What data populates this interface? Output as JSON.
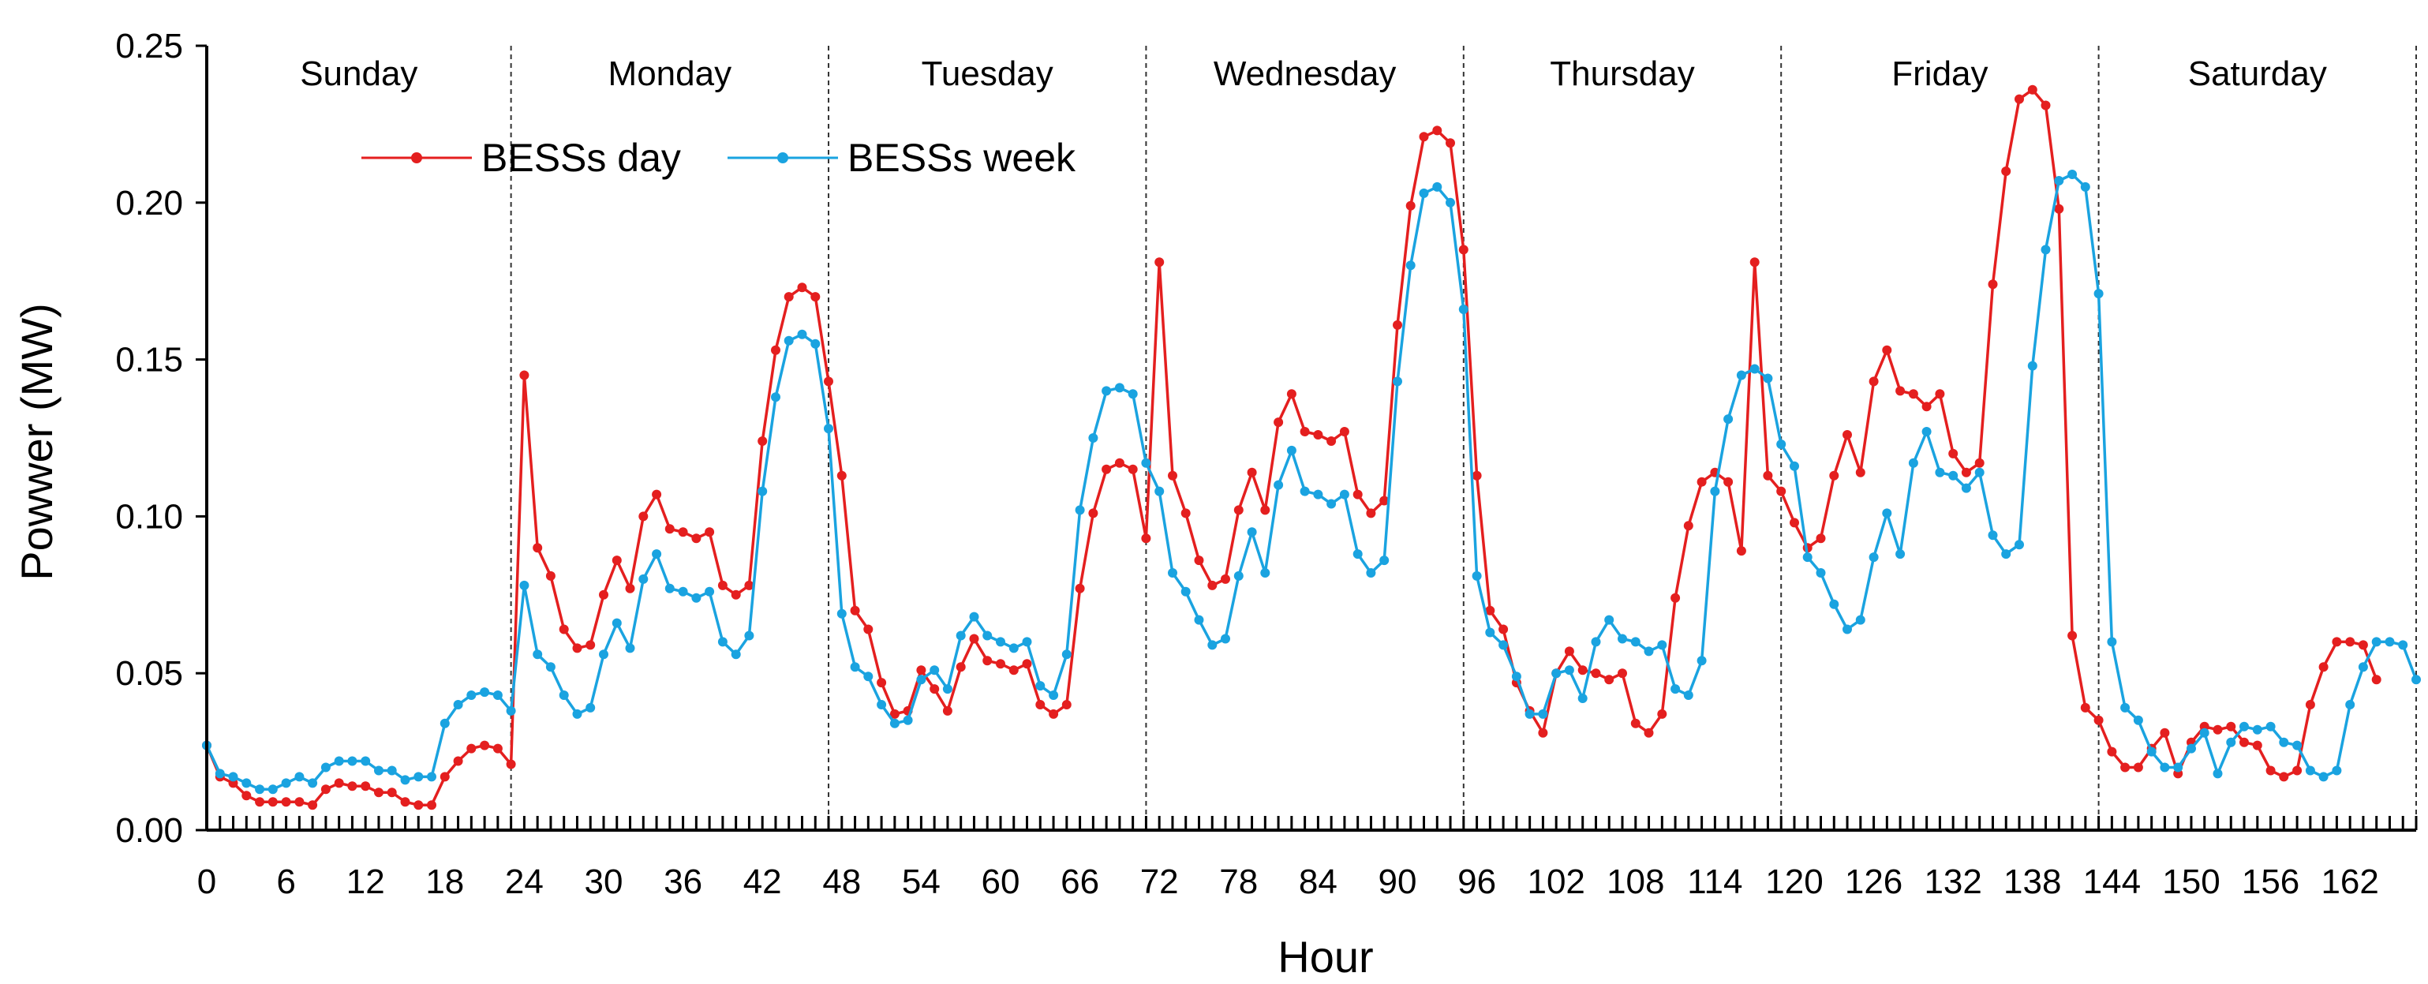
{
  "chart_data": {
    "type": "line",
    "title": "",
    "xlabel": "Hour",
    "ylabel": "Powwer (MW)",
    "xlim": [
      0,
      167
    ],
    "ylim": [
      0,
      0.25
    ],
    "x_ticks": [
      0,
      6,
      12,
      18,
      24,
      30,
      36,
      42,
      48,
      54,
      60,
      66,
      72,
      78,
      84,
      90,
      96,
      102,
      108,
      114,
      120,
      126,
      132,
      138,
      144,
      150,
      156,
      162
    ],
    "x_tick_labels": [
      "0",
      "6",
      "12",
      "18",
      "24",
      "30",
      "36",
      "42",
      "48",
      "54",
      "60",
      "66",
      "72",
      "78",
      "84",
      "90",
      "96",
      "102",
      "108",
      "114",
      "120",
      "126",
      "132",
      "138",
      "144",
      "150",
      "156",
      "162"
    ],
    "y_ticks": [
      0,
      0.05,
      0.1,
      0.15,
      0.2,
      0.25
    ],
    "y_tick_labels": [
      "0.00",
      "0.05",
      "0.10",
      "0.15",
      "0.20",
      "0.25"
    ],
    "day_dividers": [
      23,
      47,
      71,
      95,
      119,
      143
    ],
    "days": [
      {
        "label": "Sunday",
        "center": 11.5
      },
      {
        "label": "Monday",
        "center": 35
      },
      {
        "label": "Tuesday",
        "center": 59
      },
      {
        "label": "Wednesday",
        "center": 83
      },
      {
        "label": "Thursday",
        "center": 107
      },
      {
        "label": "Friday",
        "center": 131
      },
      {
        "label": "Saturday",
        "center": 155
      }
    ],
    "legend_position": "top-left",
    "series": [
      {
        "name": "BESSs day",
        "color": "#e41f1f",
        "values": [
          0.027,
          0.017,
          0.015,
          0.011,
          0.009,
          0.009,
          0.009,
          0.009,
          0.008,
          0.013,
          0.015,
          0.014,
          0.014,
          0.012,
          0.012,
          0.009,
          0.008,
          0.008,
          0.017,
          0.022,
          0.026,
          0.027,
          0.026,
          0.021,
          0.145,
          0.09,
          0.081,
          0.064,
          0.058,
          0.059,
          0.075,
          0.086,
          0.077,
          0.1,
          0.107,
          0.096,
          0.095,
          0.093,
          0.095,
          0.078,
          0.075,
          0.078,
          0.124,
          0.153,
          0.17,
          0.173,
          0.17,
          0.143,
          0.113,
          0.07,
          0.064,
          0.047,
          0.037,
          0.038,
          0.051,
          0.045,
          0.038,
          0.052,
          0.061,
          0.054,
          0.053,
          0.051,
          0.053,
          0.04,
          0.037,
          0.04,
          0.077,
          0.101,
          0.115,
          0.117,
          0.115,
          0.093,
          0.181,
          0.113,
          0.101,
          0.086,
          0.078,
          0.08,
          0.102,
          0.114,
          0.102,
          0.13,
          0.139,
          0.127,
          0.126,
          0.124,
          0.127,
          0.107,
          0.101,
          0.105,
          0.161,
          0.199,
          0.221,
          0.223,
          0.219,
          0.185,
          0.113,
          0.07,
          0.064,
          0.047,
          0.038,
          0.031,
          0.05,
          0.057,
          0.051,
          0.05,
          0.048,
          0.05,
          0.034,
          0.031,
          0.037,
          0.074,
          0.097,
          0.111,
          0.114,
          0.111,
          0.089,
          0.181,
          0.113,
          0.108,
          0.098,
          0.09,
          0.093,
          0.113,
          0.126,
          0.114,
          0.143,
          0.153,
          0.14,
          0.139,
          0.135,
          0.139,
          0.12,
          0.114,
          0.117,
          0.174,
          0.21,
          0.233,
          0.236,
          0.231,
          0.198,
          0.062,
          0.039,
          0.035,
          0.025,
          0.02,
          0.02,
          0.026,
          0.031,
          0.018,
          0.028,
          0.033,
          0.032,
          0.033,
          0.028,
          0.027,
          0.019,
          0.017,
          0.019,
          0.04,
          0.052,
          0.06,
          0.06,
          0.059,
          0.048
        ]
      },
      {
        "name": "BESSs week",
        "color": "#1aa3e0",
        "values": [
          0.027,
          0.018,
          0.017,
          0.015,
          0.013,
          0.013,
          0.015,
          0.017,
          0.015,
          0.02,
          0.022,
          0.022,
          0.022,
          0.019,
          0.019,
          0.016,
          0.017,
          0.017,
          0.034,
          0.04,
          0.043,
          0.044,
          0.043,
          0.038,
          0.078,
          0.056,
          0.052,
          0.043,
          0.037,
          0.039,
          0.056,
          0.066,
          0.058,
          0.08,
          0.088,
          0.077,
          0.076,
          0.074,
          0.076,
          0.06,
          0.056,
          0.062,
          0.108,
          0.138,
          0.156,
          0.158,
          0.155,
          0.128,
          0.069,
          0.052,
          0.049,
          0.04,
          0.034,
          0.035,
          0.048,
          0.051,
          0.045,
          0.062,
          0.068,
          0.062,
          0.06,
          0.058,
          0.06,
          0.046,
          0.043,
          0.056,
          0.102,
          0.125,
          0.14,
          0.141,
          0.139,
          0.117,
          0.108,
          0.082,
          0.076,
          0.067,
          0.059,
          0.061,
          0.081,
          0.095,
          0.082,
          0.11,
          0.121,
          0.108,
          0.107,
          0.104,
          0.107,
          0.088,
          0.082,
          0.086,
          0.143,
          0.18,
          0.203,
          0.205,
          0.2,
          0.166,
          0.081,
          0.063,
          0.059,
          0.049,
          0.037,
          0.037,
          0.05,
          0.051,
          0.042,
          0.06,
          0.067,
          0.061,
          0.06,
          0.057,
          0.059,
          0.045,
          0.043,
          0.054,
          0.108,
          0.131,
          0.145,
          0.147,
          0.144,
          0.123,
          0.116,
          0.087,
          0.082,
          0.072,
          0.064,
          0.067,
          0.087,
          0.101,
          0.088,
          0.117,
          0.127,
          0.114,
          0.113,
          0.109,
          0.114,
          0.094,
          0.088,
          0.091,
          0.148,
          0.185,
          0.207,
          0.209,
          0.205,
          0.171,
          0.06,
          0.039,
          0.035,
          0.025,
          0.02,
          0.02,
          0.026,
          0.031,
          0.018,
          0.028,
          0.033,
          0.032,
          0.033,
          0.028,
          0.027,
          0.019,
          0.017,
          0.019,
          0.04,
          0.052,
          0.06,
          0.06,
          0.059,
          0.048
        ]
      }
    ]
  }
}
